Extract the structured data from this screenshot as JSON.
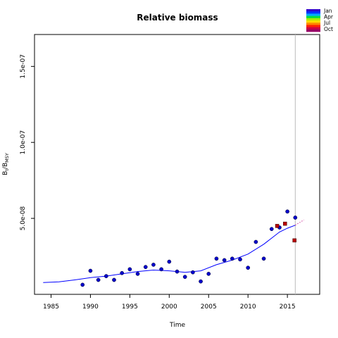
{
  "chart_data": {
    "type": "scatter",
    "title": "Relative biomass",
    "xlabel": "Time",
    "ylabel_main": "B",
    "ylabel_sub1": "t",
    "ylabel_sep": "/B",
    "ylabel_sub2": "MSY",
    "xlim": [
      1982.9,
      2019.1
    ],
    "ylim": [
      0,
      1.71e-07
    ],
    "x_ticks": [
      1985,
      1990,
      1995,
      2000,
      2005,
      2010,
      2015
    ],
    "x_tick_labels": [
      "1985",
      "1990",
      "1995",
      "2000",
      "2005",
      "2010",
      "2015"
    ],
    "y_ticks": [
      5e-08,
      1e-07,
      1.5e-07
    ],
    "y_tick_labels": [
      "5.0e-08",
      "1.0e-07",
      "1.5e-07"
    ],
    "vline_x": 2016,
    "legend": {
      "labels": [
        "Jan",
        "Apr",
        "Jul",
        "Oct"
      ],
      "colors": [
        "#3300cc",
        "#0033ff",
        "#00aaff",
        "#00dd44",
        "#aaee00",
        "#ffdd00",
        "#ff8800",
        "#ff2200",
        "#cc0044",
        "#990066"
      ]
    },
    "series": [
      {
        "role": "observed",
        "marker": "circle",
        "color": "#0000cc",
        "x": [
          1989,
          1990,
          1991,
          1992,
          1993,
          1994,
          1995,
          1996,
          1997,
          1998,
          1999,
          2000,
          2001,
          2002,
          2003,
          2004,
          2005,
          2006,
          2007,
          2008,
          2009,
          2010,
          2011,
          2012,
          2013,
          2014,
          2015,
          2016
        ],
        "y": [
          6.3e-09,
          1.55e-08,
          9.5e-09,
          1.2e-08,
          9.5e-09,
          1.4e-08,
          1.65e-08,
          1.35e-08,
          1.8e-08,
          1.95e-08,
          1.65e-08,
          2.15e-08,
          1.5e-08,
          1.15e-08,
          1.45e-08,
          8.5e-09,
          1.35e-08,
          2.35e-08,
          2.25e-08,
          2.35e-08,
          2.3e-08,
          1.75e-08,
          3.45e-08,
          2.35e-08,
          4.3e-08,
          4.4e-08,
          5.45e-08,
          5.05e-08
        ]
      },
      {
        "role": "fitted",
        "marker": "line",
        "color": "#0000ff",
        "x": [
          1984,
          1986,
          1988,
          1990,
          1992,
          1994,
          1996,
          1998,
          2000,
          2002,
          2004,
          2006,
          2008,
          2010,
          2012,
          2014,
          2015,
          2016
        ],
        "y": [
          7.8e-09,
          8.2e-09,
          9.5e-09,
          1.1e-08,
          1.2e-08,
          1.35e-08,
          1.5e-08,
          1.6e-08,
          1.55e-08,
          1.45e-08,
          1.55e-08,
          1.95e-08,
          2.25e-08,
          2.65e-08,
          3.3e-08,
          4.1e-08,
          4.35e-08,
          4.55e-08
        ]
      },
      {
        "role": "prediction",
        "marker": "dotted-line",
        "color": "#cc3399",
        "x": [
          2016,
          2017.1
        ],
        "y": [
          4.55e-08,
          4.9e-08
        ]
      },
      {
        "role": "one-step-ahead",
        "marker": "square",
        "color": "#bb0000",
        "x": [
          2013.7,
          2014.7,
          2015.9
        ],
        "y": [
          4.5e-08,
          4.65e-08,
          3.55e-08
        ]
      }
    ]
  }
}
